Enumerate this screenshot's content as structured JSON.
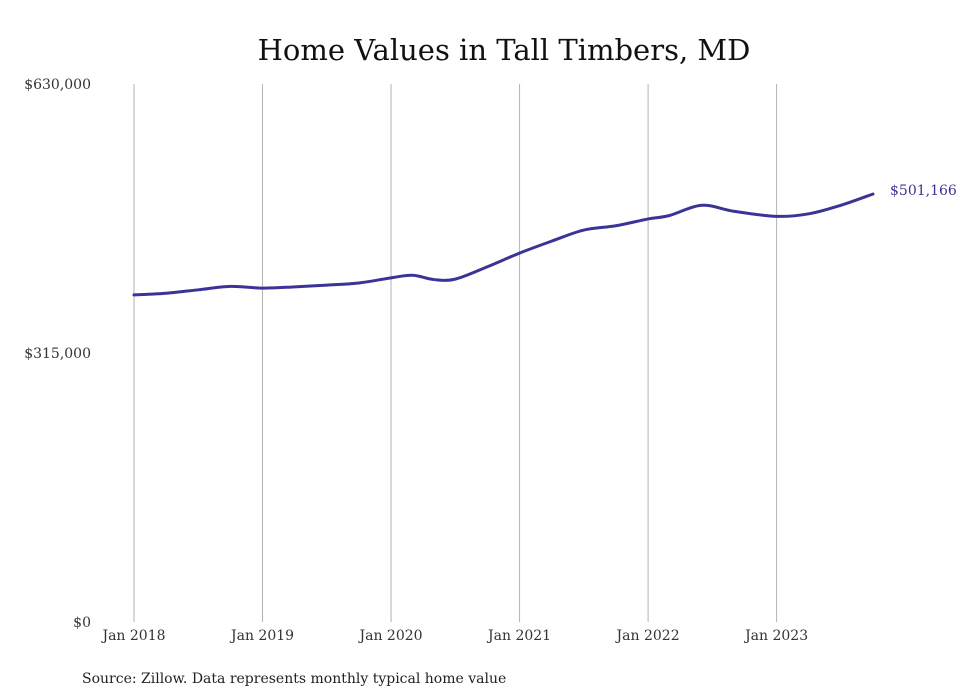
{
  "chart_data": {
    "type": "line",
    "title": "Home Values in Tall Timbers, MD",
    "xlabel": "",
    "ylabel": "",
    "x_start": "2018-01",
    "x_end": "2023-10",
    "xlim": [
      "2018-01",
      "2023-10"
    ],
    "ylim": [
      0,
      630000
    ],
    "y_ticks": [
      {
        "value": 0,
        "label": "$0"
      },
      {
        "value": 315000,
        "label": "$315,000"
      },
      {
        "value": 630000,
        "label": "$630,000"
      }
    ],
    "x_ticks": [
      {
        "value": "2018-01",
        "label": "Jan 2018"
      },
      {
        "value": "2019-01",
        "label": "Jan 2019"
      },
      {
        "value": "2020-01",
        "label": "Jan 2020"
      },
      {
        "value": "2021-01",
        "label": "Jan 2021"
      },
      {
        "value": "2022-01",
        "label": "Jan 2022"
      },
      {
        "value": "2023-01",
        "label": "Jan 2023"
      }
    ],
    "grid": {
      "vertical": true,
      "horizontal": false
    },
    "legend": "none",
    "series": [
      {
        "color": "#3b3496",
        "points": [
          {
            "x": "2018-01",
            "y": 383000
          },
          {
            "x": "2018-04",
            "y": 385000
          },
          {
            "x": "2018-07",
            "y": 389000
          },
          {
            "x": "2018-10",
            "y": 393000
          },
          {
            "x": "2019-01",
            "y": 391000
          },
          {
            "x": "2019-04",
            "y": 392500
          },
          {
            "x": "2019-07",
            "y": 394500
          },
          {
            "x": "2019-10",
            "y": 397000
          },
          {
            "x": "2020-01",
            "y": 403000
          },
          {
            "x": "2020-03",
            "y": 406000
          },
          {
            "x": "2020-05",
            "y": 401000
          },
          {
            "x": "2020-07",
            "y": 401500
          },
          {
            "x": "2020-10",
            "y": 416000
          },
          {
            "x": "2021-01",
            "y": 432000
          },
          {
            "x": "2021-04",
            "y": 446000
          },
          {
            "x": "2021-07",
            "y": 459000
          },
          {
            "x": "2021-10",
            "y": 464000
          },
          {
            "x": "2022-01",
            "y": 472000
          },
          {
            "x": "2022-03",
            "y": 476000
          },
          {
            "x": "2022-06",
            "y": 488000
          },
          {
            "x": "2022-09",
            "y": 481000
          },
          {
            "x": "2023-01",
            "y": 475000
          },
          {
            "x": "2023-04",
            "y": 478000
          },
          {
            "x": "2023-07",
            "y": 488000
          },
          {
            "x": "2023-10",
            "y": 501166
          }
        ],
        "end_label": "$501,166"
      }
    ],
    "source": "Source: Zillow. Data represents monthly typical home value"
  }
}
